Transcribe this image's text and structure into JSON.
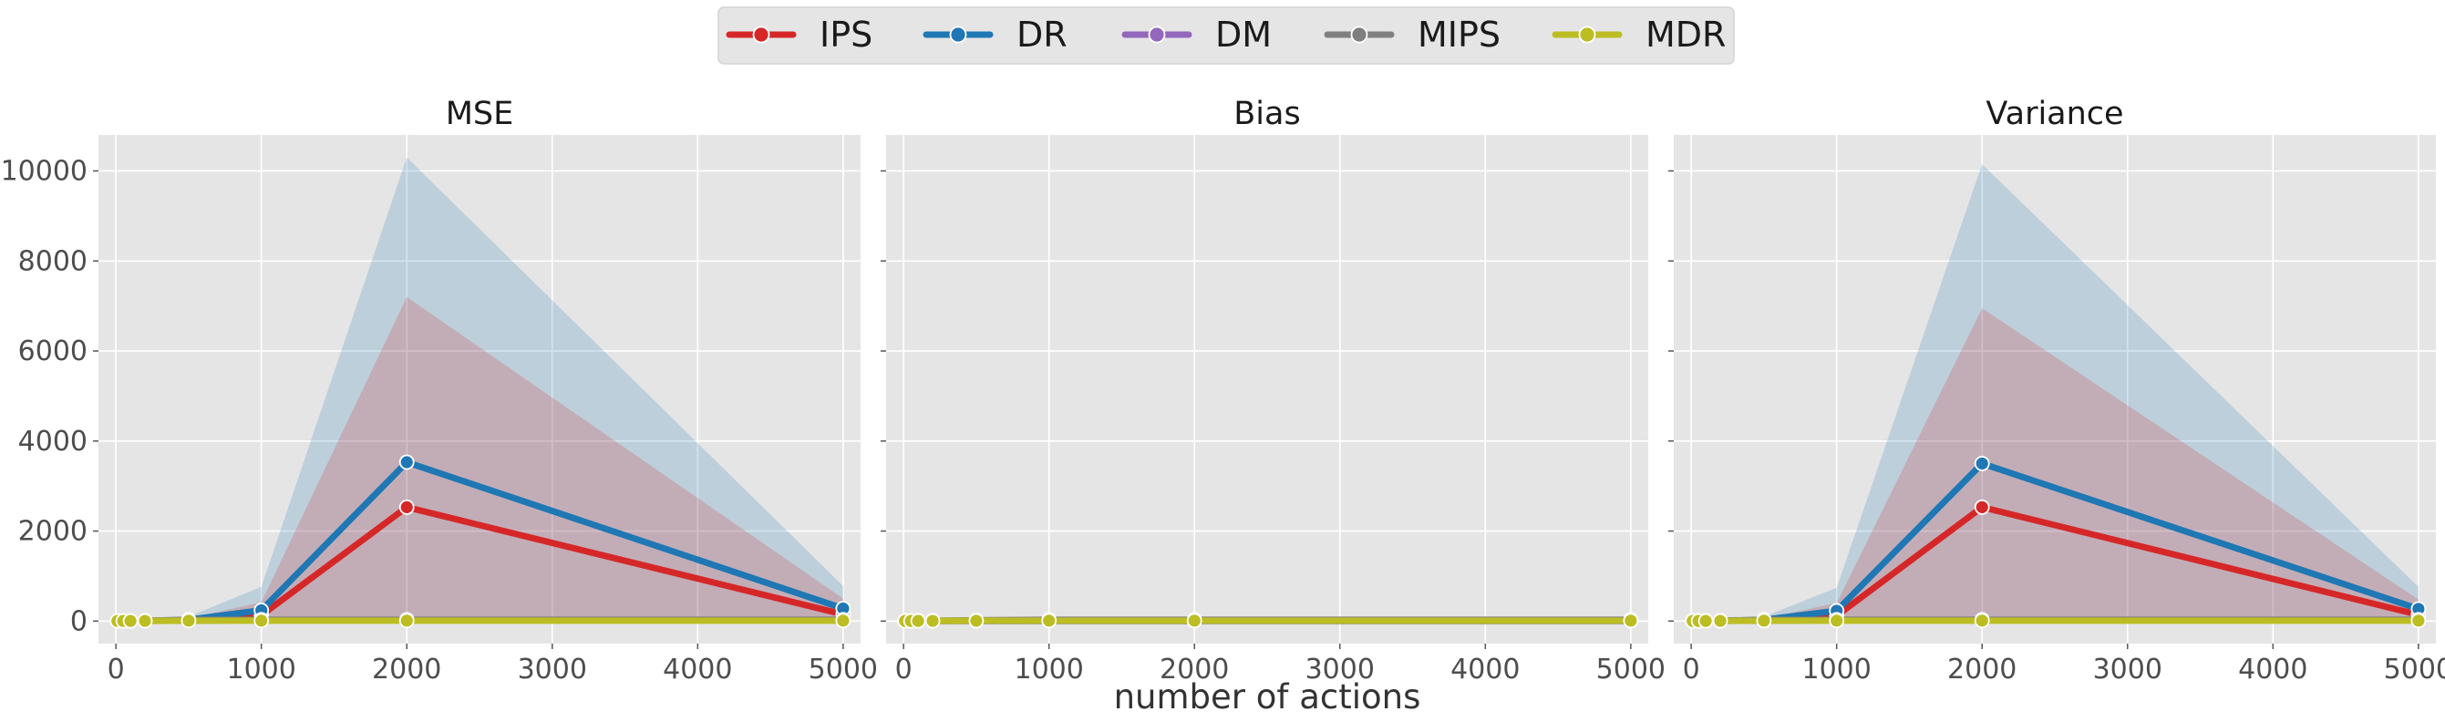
{
  "legend": {
    "placement": "top-center",
    "entries": [
      {
        "label": "IPS",
        "color": "#d62728"
      },
      {
        "label": "DR",
        "color": "#1f77b4"
      },
      {
        "label": "DM",
        "color": "#9467bd"
      },
      {
        "label": "MIPS",
        "color": "#7f7f7f"
      },
      {
        "label": "MDR",
        "color": "#bcbd22"
      }
    ]
  },
  "chart_data": [
    {
      "type": "line",
      "title": "MSE",
      "xlabel": "",
      "ylabel": "",
      "xlim": [
        -120,
        5120
      ],
      "ylim": [
        -500,
        10800
      ],
      "xticks": [
        0,
        1000,
        2000,
        3000,
        4000,
        5000
      ],
      "yticks": [
        0,
        2000,
        4000,
        6000,
        8000,
        10000
      ],
      "grid": true,
      "x": [
        10,
        50,
        100,
        200,
        500,
        1000,
        2000,
        5000
      ],
      "series": [
        {
          "name": "IPS",
          "color": "#d62728",
          "values": [
            1,
            2,
            3,
            5,
            20,
            130,
            2530,
            150
          ],
          "band_low": [
            0,
            0,
            0,
            0,
            0,
            0,
            0,
            0
          ],
          "band_high": [
            3,
            6,
            10,
            20,
            60,
            420,
            7200,
            500
          ]
        },
        {
          "name": "DR",
          "color": "#1f77b4",
          "values": [
            1,
            2,
            3,
            5,
            30,
            240,
            3530,
            280
          ],
          "band_low": [
            0,
            0,
            0,
            0,
            0,
            0,
            0,
            0
          ],
          "band_high": [
            3,
            6,
            10,
            20,
            100,
            760,
            10300,
            780
          ]
        },
        {
          "name": "DM",
          "color": "#9467bd",
          "values": [
            5,
            5,
            5,
            5,
            10,
            20,
            20,
            20
          ]
        },
        {
          "name": "MIPS",
          "color": "#7f7f7f",
          "values": [
            5,
            6,
            8,
            10,
            30,
            30,
            30,
            30
          ]
        },
        {
          "name": "MDR",
          "color": "#bcbd22",
          "values": [
            3,
            3,
            4,
            5,
            10,
            10,
            10,
            10
          ]
        }
      ]
    },
    {
      "type": "line",
      "title": "Bias",
      "xlabel": "number of actions",
      "ylabel": "",
      "xlim": [
        -120,
        5120
      ],
      "ylim": [
        -500,
        10800
      ],
      "xticks": [
        0,
        1000,
        2000,
        3000,
        4000,
        5000
      ],
      "yticks": [
        0,
        2000,
        4000,
        6000,
        8000,
        10000
      ],
      "grid": true,
      "x": [
        10,
        50,
        100,
        200,
        500,
        1000,
        2000,
        5000
      ],
      "series": [
        {
          "name": "IPS",
          "color": "#d62728",
          "values": [
            1,
            2,
            3,
            4,
            5,
            5,
            5,
            5
          ]
        },
        {
          "name": "DR",
          "color": "#1f77b4",
          "values": [
            1,
            2,
            3,
            4,
            5,
            5,
            5,
            5
          ]
        },
        {
          "name": "DM",
          "color": "#9467bd",
          "values": [
            5,
            5,
            5,
            5,
            8,
            10,
            10,
            10
          ]
        },
        {
          "name": "MIPS",
          "color": "#7f7f7f",
          "values": [
            5,
            6,
            8,
            10,
            20,
            30,
            30,
            30
          ]
        },
        {
          "name": "MDR",
          "color": "#bcbd22",
          "values": [
            3,
            3,
            4,
            5,
            8,
            10,
            10,
            10
          ]
        }
      ]
    },
    {
      "type": "line",
      "title": "Variance",
      "xlabel": "",
      "ylabel": "",
      "xlim": [
        -120,
        5120
      ],
      "ylim": [
        -500,
        10800
      ],
      "xticks": [
        0,
        1000,
        2000,
        3000,
        4000,
        5000
      ],
      "yticks": [
        0,
        2000,
        4000,
        6000,
        8000,
        10000
      ],
      "grid": true,
      "x": [
        10,
        50,
        100,
        200,
        500,
        1000,
        2000,
        5000
      ],
      "series": [
        {
          "name": "IPS",
          "color": "#d62728",
          "values": [
            1,
            2,
            3,
            5,
            20,
            120,
            2530,
            140
          ],
          "band_low": [
            0,
            0,
            0,
            0,
            0,
            0,
            0,
            0
          ],
          "band_high": [
            3,
            6,
            10,
            20,
            60,
            400,
            6950,
            480
          ]
        },
        {
          "name": "DR",
          "color": "#1f77b4",
          "values": [
            1,
            2,
            3,
            5,
            30,
            230,
            3500,
            270
          ],
          "band_low": [
            0,
            0,
            0,
            0,
            0,
            0,
            0,
            0
          ],
          "band_high": [
            3,
            6,
            10,
            20,
            100,
            740,
            10150,
            760
          ]
        },
        {
          "name": "DM",
          "color": "#9467bd",
          "values": [
            5,
            5,
            5,
            5,
            10,
            20,
            20,
            20
          ]
        },
        {
          "name": "MIPS",
          "color": "#7f7f7f",
          "values": [
            5,
            6,
            8,
            10,
            30,
            30,
            30,
            30
          ]
        },
        {
          "name": "MDR",
          "color": "#bcbd22",
          "values": [
            3,
            3,
            4,
            5,
            10,
            10,
            10,
            10
          ]
        }
      ]
    }
  ]
}
